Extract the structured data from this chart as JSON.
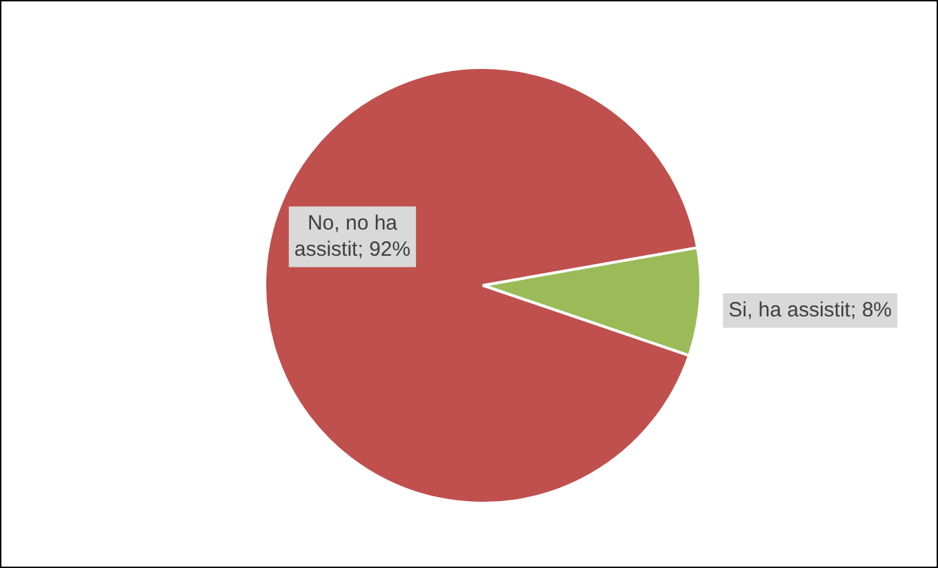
{
  "chart_data": {
    "type": "pie",
    "categories": [
      "Si, ha assistit",
      "No, no ha assistit"
    ],
    "values": [
      8,
      92
    ],
    "colors": [
      "#9bbb59",
      "#c0504d"
    ],
    "value_labels": [
      "8%",
      "92%"
    ],
    "legend": false
  }
}
